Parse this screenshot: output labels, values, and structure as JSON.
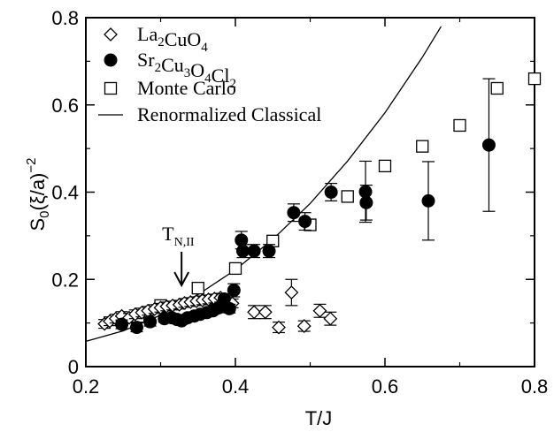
{
  "chart_data": {
    "type": "scatter",
    "title": "",
    "xlabel": "T/J",
    "ylabel_main": "S",
    "ylabel_sub": "0",
    "ylabel_rest": "(ξ/a)",
    "ylabel_sup": "−2",
    "xlim": [
      0.2,
      0.8
    ],
    "ylim": [
      0,
      0.8
    ],
    "xticks": [
      0.2,
      0.4,
      0.6,
      0.8
    ],
    "xtick_labels": [
      "0.2",
      "0.4",
      "0.6",
      "0.8"
    ],
    "yticks": [
      0,
      0.2,
      0.4,
      0.6,
      0.8
    ],
    "ytick_labels": [
      "0",
      "0.2",
      "0.4",
      "0.6",
      "0.8"
    ],
    "grid": false,
    "legend_position": "top-left",
    "annotation": {
      "main": "T",
      "sub": "N,II",
      "x": 0.328
    },
    "series": [
      {
        "name_parts": [
          {
            "t": "La",
            "s": "n"
          },
          {
            "t": "2",
            "s": "sub"
          },
          {
            "t": "CuO",
            "s": "n"
          },
          {
            "t": "4",
            "s": "sub"
          }
        ],
        "marker": "diamond-open",
        "points": [
          [
            0.225,
            0.098,
            0.01
          ],
          [
            0.232,
            0.104,
            0.01
          ],
          [
            0.24,
            0.11,
            0.01
          ],
          [
            0.248,
            0.116,
            0.01
          ],
          [
            0.258,
            0.112,
            0.01
          ],
          [
            0.266,
            0.12,
            0.01
          ],
          [
            0.275,
            0.124,
            0.01
          ],
          [
            0.283,
            0.128,
            0.01
          ],
          [
            0.292,
            0.132,
            0.01
          ],
          [
            0.3,
            0.135,
            0.01
          ],
          [
            0.308,
            0.138,
            0.01
          ],
          [
            0.316,
            0.14,
            0.01
          ],
          [
            0.325,
            0.142,
            0.01
          ],
          [
            0.332,
            0.146,
            0.01
          ],
          [
            0.34,
            0.148,
            0.01
          ],
          [
            0.348,
            0.15,
            0.01
          ],
          [
            0.356,
            0.152,
            0.01
          ],
          [
            0.364,
            0.154,
            0.01
          ],
          [
            0.372,
            0.156,
            0.01
          ],
          [
            0.38,
            0.158,
            0.01
          ],
          [
            0.388,
            0.15,
            0.01
          ],
          [
            0.396,
            0.145,
            0.01
          ],
          [
            0.425,
            0.125,
            0.015
          ],
          [
            0.44,
            0.125,
            0.015
          ],
          [
            0.458,
            0.09,
            0.012
          ],
          [
            0.475,
            0.17,
            0.03
          ],
          [
            0.492,
            0.093,
            0.012
          ],
          [
            0.513,
            0.128,
            0.015
          ],
          [
            0.527,
            0.11,
            0.015
          ]
        ]
      },
      {
        "name_parts": [
          {
            "t": "Sr",
            "s": "n"
          },
          {
            "t": "2",
            "s": "sub"
          },
          {
            "t": "Cu",
            "s": "n"
          },
          {
            "t": "3",
            "s": "sub"
          },
          {
            "t": "O",
            "s": "n"
          },
          {
            "t": "4",
            "s": "sub"
          },
          {
            "t": "Cl",
            "s": "n"
          },
          {
            "t": "2",
            "s": "sub"
          }
        ],
        "marker": "circle-filled",
        "points": [
          [
            0.248,
            0.097,
            0.01
          ],
          [
            0.268,
            0.09,
            0.01
          ],
          [
            0.286,
            0.103,
            0.01
          ],
          [
            0.305,
            0.11,
            0.008
          ],
          [
            0.315,
            0.112,
            0.008
          ],
          [
            0.322,
            0.108,
            0.008
          ],
          [
            0.328,
            0.105,
            0.008
          ],
          [
            0.336,
            0.112,
            0.008
          ],
          [
            0.345,
            0.116,
            0.008
          ],
          [
            0.353,
            0.12,
            0.008
          ],
          [
            0.362,
            0.124,
            0.008
          ],
          [
            0.37,
            0.128,
            0.008
          ],
          [
            0.378,
            0.135,
            0.008
          ],
          [
            0.385,
            0.155,
            0.012
          ],
          [
            0.392,
            0.133,
            0.01
          ],
          [
            0.398,
            0.175,
            0.015
          ],
          [
            0.408,
            0.29,
            0.02
          ],
          [
            0.41,
            0.265,
            0.015
          ],
          [
            0.425,
            0.265,
            0.015
          ],
          [
            0.445,
            0.265,
            0.015
          ],
          [
            0.478,
            0.353,
            0.02
          ],
          [
            0.493,
            0.333,
            0.02
          ],
          [
            0.528,
            0.4,
            0.02
          ],
          [
            0.574,
            0.401,
            0.07
          ],
          [
            0.575,
            0.376,
            0.04
          ],
          [
            0.658,
            0.38,
            0.09
          ],
          [
            0.739,
            0.508,
            0.152
          ]
        ]
      },
      {
        "name_parts": [
          {
            "t": "Monte Carlo",
            "s": "n"
          }
        ],
        "marker": "square-open",
        "points": [
          [
            0.27,
            0.115
          ],
          [
            0.3,
            0.14
          ],
          [
            0.35,
            0.18
          ],
          [
            0.4,
            0.225
          ],
          [
            0.45,
            0.288
          ],
          [
            0.5,
            0.325
          ],
          [
            0.55,
            0.39
          ],
          [
            0.6,
            0.46
          ],
          [
            0.65,
            0.505
          ],
          [
            0.7,
            0.553
          ],
          [
            0.75,
            0.638
          ],
          [
            0.8,
            0.66
          ]
        ]
      },
      {
        "name_parts": [
          {
            "t": "Renormalized Classical",
            "s": "n"
          }
        ],
        "marker": "line",
        "points": [
          [
            0.2,
            0.058
          ],
          [
            0.25,
            0.082
          ],
          [
            0.3,
            0.118
          ],
          [
            0.35,
            0.165
          ],
          [
            0.4,
            0.222
          ],
          [
            0.45,
            0.292
          ],
          [
            0.5,
            0.374
          ],
          [
            0.55,
            0.471
          ],
          [
            0.6,
            0.582
          ],
          [
            0.65,
            0.709
          ],
          [
            0.675,
            0.78
          ]
        ]
      }
    ]
  }
}
